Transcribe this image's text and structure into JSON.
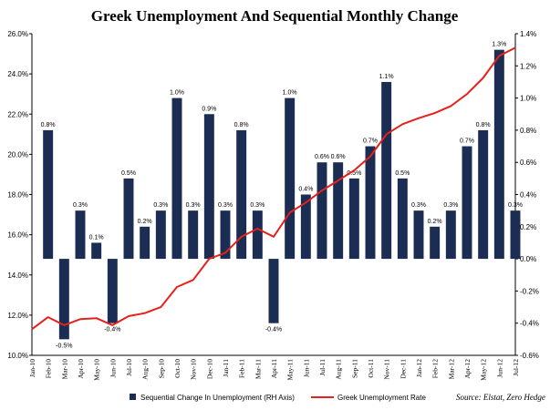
{
  "chart_data": {
    "type": "bar+line",
    "title": "Greek Unemployment And Sequential Monthly Change",
    "categories": [
      "Jan-10",
      "Feb-10",
      "Mar-10",
      "Apr-10",
      "May-10",
      "Jun-10",
      "Jul-10",
      "Aug-10",
      "Sep-10",
      "Oct-10",
      "Nov-10",
      "Dec-10",
      "Jan-11",
      "Feb-11",
      "Mar-11",
      "Apr-11",
      "May-11",
      "Jun-11",
      "Jul-11",
      "Aug-11",
      "Sep-11",
      "Oct-11",
      "Nov-11",
      "Dec-11",
      "Jan-12",
      "Feb-12",
      "Mar-12",
      "Apr-12",
      "May-12",
      "Jun-12",
      "Jul-12"
    ],
    "left_axis": {
      "ticks": [
        "10.0%",
        "12.0%",
        "14.0%",
        "16.0%",
        "18.0%",
        "20.0%",
        "22.0%",
        "24.0%",
        "26.0%"
      ],
      "ylim": [
        10,
        26
      ]
    },
    "right_axis": {
      "ticks": [
        "-0.6%",
        "-0.4%",
        "-0.2%",
        "0.0%",
        "0.2%",
        "0.4%",
        "0.6%",
        "0.8%",
        "1.0%",
        "1.2%",
        "1.4%"
      ],
      "ylim": [
        -0.6,
        1.4
      ]
    },
    "series": [
      {
        "name": "Sequential Change In Unemployment (RH Axis)",
        "type": "bar",
        "axis": "right",
        "color": "#1b2d52",
        "values": [
          null,
          0.8,
          -0.5,
          0.3,
          0.1,
          -0.4,
          0.5,
          0.2,
          0.3,
          1.0,
          0.3,
          0.9,
          0.3,
          0.8,
          0.3,
          -0.4,
          1.0,
          0.4,
          0.6,
          0.6,
          0.5,
          0.7,
          1.1,
          0.5,
          0.3,
          0.2,
          0.3,
          0.7,
          0.8,
          1.3,
          0.3
        ],
        "labels": [
          "",
          "0.8%",
          "-0.5%",
          "0.3%",
          "0.1%",
          "-0.4%",
          "0.5%",
          "0.2%",
          "0.3%",
          "1.0%",
          "0.3%",
          "0.9%",
          "0.3%",
          "0.8%",
          "0.3%",
          "-0.4%",
          "1.0%",
          "0.4%",
          "0.6%",
          "0.6%",
          "0.5%",
          "0.7%",
          "1.1%",
          "0.5%",
          "0.3%",
          "0.2%",
          "0.3%",
          "0.7%",
          "0.8%",
          "1.3%",
          "0.3%"
        ]
      },
      {
        "name": "Greek Unemployment Rate",
        "type": "line",
        "axis": "left",
        "color": "#e8201a",
        "values": [
          11.3,
          11.9,
          11.5,
          11.8,
          11.85,
          11.5,
          11.95,
          12.1,
          12.4,
          13.4,
          13.75,
          14.8,
          15.1,
          15.9,
          16.3,
          15.9,
          17.1,
          17.6,
          18.2,
          18.7,
          19.2,
          19.9,
          21.0,
          21.5,
          21.8,
          22.05,
          22.4,
          23.0,
          23.8,
          24.9,
          25.3
        ]
      }
    ],
    "legend_position": "bottom",
    "source": "Source: Elstat, Zero Hedge"
  }
}
